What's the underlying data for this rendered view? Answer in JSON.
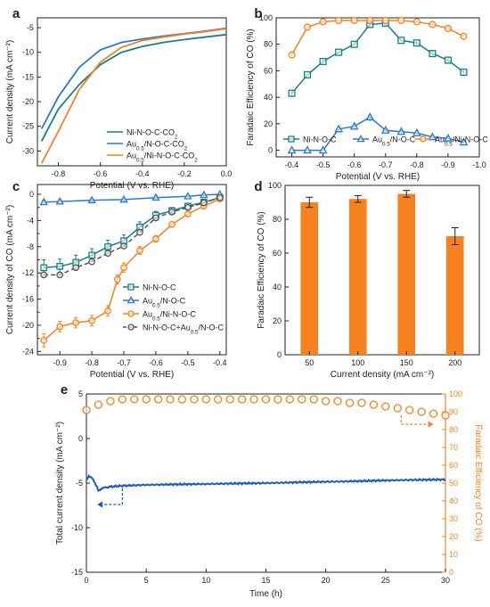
{
  "colors": {
    "teal": "#1a7f86",
    "blue": "#2f78c8",
    "orange": "#f5821f",
    "gray": "#555555",
    "series_e_current": "#1d5fb5"
  },
  "chart_data": [
    {
      "panel": "a",
      "type": "line",
      "xlabel": "Potential (V vs. RHE)",
      "ylabel": "Current density (mA cm⁻²)",
      "xlim": [
        -0.9,
        0.0
      ],
      "ylim": [
        -33,
        -3
      ],
      "xticks": [
        -0.8,
        -0.6,
        -0.4,
        -0.2,
        0.0
      ],
      "yticks": [
        -5,
        -10,
        -15,
        -20,
        -25,
        -30
      ],
      "legend_position": "lower-right",
      "series": [
        {
          "name": "Ni-N-O-C-CO₂",
          "color": "#1a7f86",
          "x": [
            -0.88,
            -0.8,
            -0.7,
            -0.6,
            -0.5,
            -0.4,
            -0.3,
            -0.2,
            -0.1,
            0.0
          ],
          "y": [
            -28.0,
            -21.5,
            -16.5,
            -12.5,
            -10.0,
            -8.8,
            -8.0,
            -7.4,
            -6.9,
            -6.4
          ]
        },
        {
          "name": "Au₀.₅/N-O-C-CO₂",
          "color": "#2f78c8",
          "x": [
            -0.88,
            -0.8,
            -0.7,
            -0.6,
            -0.5,
            -0.4,
            -0.3,
            -0.2,
            -0.1,
            0.0
          ],
          "y": [
            -25.5,
            -19.0,
            -13.0,
            -9.5,
            -8.0,
            -7.3,
            -6.7,
            -6.2,
            -5.7,
            -5.1
          ]
        },
        {
          "name": "Au₀.₅/Ni-N-O-C-CO₂",
          "color": "#f5821f",
          "x": [
            -0.88,
            -0.8,
            -0.7,
            -0.6,
            -0.5,
            -0.4,
            -0.3,
            -0.2,
            -0.1,
            0.0
          ],
          "y": [
            -32.5,
            -26.0,
            -17.5,
            -12.0,
            -9.0,
            -7.6,
            -6.9,
            -6.3,
            -5.8,
            -5.2
          ]
        }
      ]
    },
    {
      "panel": "b",
      "type": "line",
      "xlabel": "Potential (V vs. RHE)",
      "ylabel": "Faradaic Efficiency of CO (%)",
      "xlim": [
        -0.35,
        -1.0
      ],
      "ylim": [
        -5,
        100
      ],
      "xticks": [
        -0.4,
        -0.5,
        -0.6,
        -0.7,
        -0.8,
        -0.9,
        -1.0
      ],
      "yticks": [
        0,
        20,
        40,
        60,
        80,
        100
      ],
      "legend_position": "bottom",
      "series": [
        {
          "name": "Ni-N-O-C",
          "color": "#1a7f86",
          "marker": "square",
          "x": [
            -0.4,
            -0.45,
            -0.5,
            -0.55,
            -0.6,
            -0.65,
            -0.7,
            -0.75,
            -0.8,
            -0.85,
            -0.9,
            -0.95
          ],
          "y": [
            43,
            57,
            67,
            74,
            80,
            95,
            96,
            83,
            81,
            73,
            68,
            59
          ],
          "err": [
            2,
            1,
            2,
            1,
            1,
            2,
            2,
            1,
            2,
            2,
            2,
            2
          ]
        },
        {
          "name": "Au₀.₅/N-O-C",
          "color": "#2f78c8",
          "marker": "triangle",
          "x": [
            -0.4,
            -0.45,
            -0.5,
            -0.55,
            -0.6,
            -0.65,
            -0.7,
            -0.75,
            -0.8,
            -0.85,
            -0.9,
            -0.95
          ],
          "y": [
            0,
            0,
            0,
            16,
            18,
            25,
            15,
            14,
            13,
            10,
            9,
            6
          ],
          "err": [
            0,
            0,
            0,
            2,
            2,
            3,
            2,
            2,
            2,
            2,
            2,
            1
          ]
        },
        {
          "name": "Au₀.₅/Ni-N-O-C",
          "color": "#f5821f",
          "marker": "circle",
          "x": [
            -0.4,
            -0.45,
            -0.5,
            -0.55,
            -0.6,
            -0.65,
            -0.7,
            -0.75,
            -0.8,
            -0.85,
            -0.9,
            -0.95
          ],
          "y": [
            72,
            93,
            97,
            98,
            98,
            98,
            98,
            98,
            97,
            95,
            92,
            86
          ],
          "err": [
            1,
            1,
            1,
            1,
            1,
            1,
            1,
            1,
            1,
            1,
            1,
            1
          ]
        }
      ]
    },
    {
      "panel": "c",
      "type": "line",
      "xlabel": "Potential (V vs. RHE)",
      "ylabel": "Current density of CO (mA cm⁻²)",
      "xlim": [
        -0.97,
        -0.38
      ],
      "ylim": [
        -24.5,
        1.5
      ],
      "xticks": [
        -0.9,
        -0.8,
        -0.7,
        -0.6,
        -0.5,
        -0.4
      ],
      "yticks": [
        0,
        -2,
        -4,
        -6,
        -8,
        -10,
        -12,
        -14,
        -16,
        -18,
        -20,
        -22,
        -24
      ],
      "ytick_labels": [
        "0",
        "",
        "-4",
        "",
        "-8",
        "",
        "-12",
        "",
        "-16",
        "",
        "-20",
        "",
        "-24"
      ],
      "legend_position": "bottom-right",
      "series": [
        {
          "name": "Ni-N-O-C",
          "color": "#1a7f86",
          "marker": "square",
          "x": [
            -0.95,
            -0.9,
            -0.85,
            -0.8,
            -0.75,
            -0.7,
            -0.65,
            -0.6,
            -0.55,
            -0.5,
            -0.45,
            -0.4
          ],
          "y": [
            -11.2,
            -11.0,
            -10.4,
            -9.3,
            -8.0,
            -7.1,
            -5.0,
            -3.2,
            -2.5,
            -1.8,
            -1.2,
            -0.5
          ],
          "err": [
            1.2,
            1.1,
            1.1,
            1.0,
            1.0,
            0.9,
            0.8,
            0.6,
            0.5,
            0.4,
            0.3,
            0.2
          ]
        },
        {
          "name": "Au₀.₅/N-O-C",
          "color": "#2f78c8",
          "marker": "triangle",
          "x": [
            -0.95,
            -0.9,
            -0.8,
            -0.7,
            -0.6,
            -0.5,
            -0.45,
            -0.4
          ],
          "y": [
            -1.2,
            -1.1,
            -0.9,
            -0.8,
            -0.5,
            -0.3,
            -0.1,
            0.0
          ],
          "err": [
            0.3,
            0.3,
            0.2,
            0.2,
            0.2,
            0.1,
            0.1,
            0.1
          ]
        },
        {
          "name": "Au₀.₅/Ni-N-O-C",
          "color": "#f5821f",
          "marker": "circle",
          "x": [
            -0.95,
            -0.9,
            -0.85,
            -0.8,
            -0.75,
            -0.72,
            -0.7,
            -0.65,
            -0.6,
            -0.55,
            -0.5,
            -0.45,
            -0.4
          ],
          "y": [
            -22.3,
            -20.2,
            -19.6,
            -19.3,
            -17.8,
            -13.0,
            -11.2,
            -8.6,
            -6.8,
            -4.6,
            -3.0,
            -1.8,
            -0.7
          ],
          "err": [
            1.0,
            0.8,
            0.8,
            0.8,
            0.8,
            0.7,
            0.7,
            0.6,
            0.5,
            0.4,
            0.3,
            0.2,
            0.2
          ]
        },
        {
          "name": "Ni-N-O-C+Au₀.₅/N-O-C",
          "color": "#555555",
          "marker": "circle",
          "dashed": true,
          "x": [
            -0.95,
            -0.9,
            -0.85,
            -0.8,
            -0.75,
            -0.7,
            -0.65,
            -0.6,
            -0.55,
            -0.5,
            -0.45,
            -0.4
          ],
          "y": [
            -12.3,
            -12.3,
            -11.2,
            -10.3,
            -9.0,
            -7.9,
            -5.8,
            -3.6,
            -2.7,
            -2.0,
            -1.3,
            -0.5
          ]
        }
      ]
    },
    {
      "panel": "d",
      "type": "bar",
      "xlabel": "Current density (mA cm⁻²)",
      "ylabel": "Faradaic Efficiency of CO (%)",
      "categories": [
        "50",
        "100",
        "150",
        "200"
      ],
      "values": [
        90,
        92,
        95,
        70
      ],
      "err": [
        3,
        2,
        2,
        5
      ],
      "ylim": [
        0,
        100
      ],
      "yticks": [
        0,
        20,
        40,
        60,
        80,
        100
      ],
      "color": "#f5821f"
    },
    {
      "panel": "e",
      "type": "scatter",
      "xlabel": "Time (h)",
      "ylabel_left": "Total current density (mA cm⁻²)",
      "ylabel_right": "Faradaic Efficiency of CO (%)",
      "xlim": [
        0,
        30
      ],
      "ylim_left": [
        -15,
        5
      ],
      "ylim_right": [
        0,
        100
      ],
      "xticks": [
        0,
        5,
        10,
        15,
        20,
        25,
        30
      ],
      "yticks_left": [
        5,
        0,
        -5,
        -10,
        -15
      ],
      "yticks_right": [
        100,
        90,
        80,
        70,
        60,
        50,
        40,
        30,
        20,
        10,
        0
      ],
      "current_series": {
        "name": "Total current density",
        "color": "#1d5fb5",
        "x": [
          0,
          0.2,
          0.5,
          0.8,
          1.0,
          1.3,
          1.6,
          2,
          3,
          5,
          7,
          10,
          12,
          15,
          18,
          20,
          22,
          25,
          27,
          30
        ],
        "y": [
          -4.7,
          -4.2,
          -4.5,
          -5.2,
          -5.8,
          -5.6,
          -5.5,
          -5.4,
          -5.3,
          -5.2,
          -5.15,
          -5.1,
          -5.05,
          -5.0,
          -4.9,
          -4.85,
          -4.8,
          -4.7,
          -4.65,
          -4.6
        ]
      },
      "fe_series": {
        "name": "Faradaic Efficiency of CO",
        "color": "#f5821f",
        "x": [
          0,
          1,
          2,
          3,
          4,
          5,
          6,
          7,
          8,
          9,
          10,
          11,
          12,
          13,
          14,
          15,
          16,
          17,
          18,
          19,
          20,
          21,
          22,
          23,
          24,
          25,
          26,
          27,
          28,
          29,
          30
        ],
        "y": [
          91,
          94,
          96,
          97,
          97,
          97,
          97,
          97,
          97,
          97,
          97,
          97,
          97,
          97,
          97,
          97,
          97,
          97,
          97,
          97,
          96,
          96,
          95,
          95,
          94,
          93,
          92,
          91,
          90,
          89,
          88
        ]
      }
    }
  ],
  "panel_labels": {
    "a": "a",
    "b": "b",
    "c": "c",
    "d": "d",
    "e": "e"
  }
}
